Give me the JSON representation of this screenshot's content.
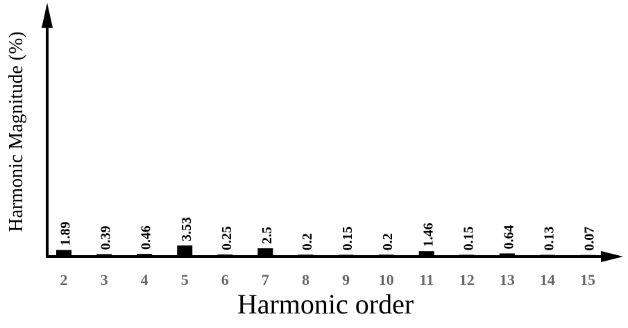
{
  "chart_data": {
    "type": "bar",
    "x_label": "Harmonic order",
    "y_label": "Harmonic Magnitude (%)",
    "categories": [
      "2",
      "3",
      "4",
      "5",
      "6",
      "7",
      "8",
      "9",
      "10",
      "11",
      "12",
      "13",
      "14",
      "15"
    ],
    "values": [
      1.89,
      0.39,
      0.46,
      3.53,
      0.25,
      2.5,
      0.2,
      0.15,
      0.2,
      1.46,
      0.15,
      0.64,
      0.13,
      0.07
    ],
    "color": "#000000",
    "ylim": [
      0,
      90
    ]
  }
}
